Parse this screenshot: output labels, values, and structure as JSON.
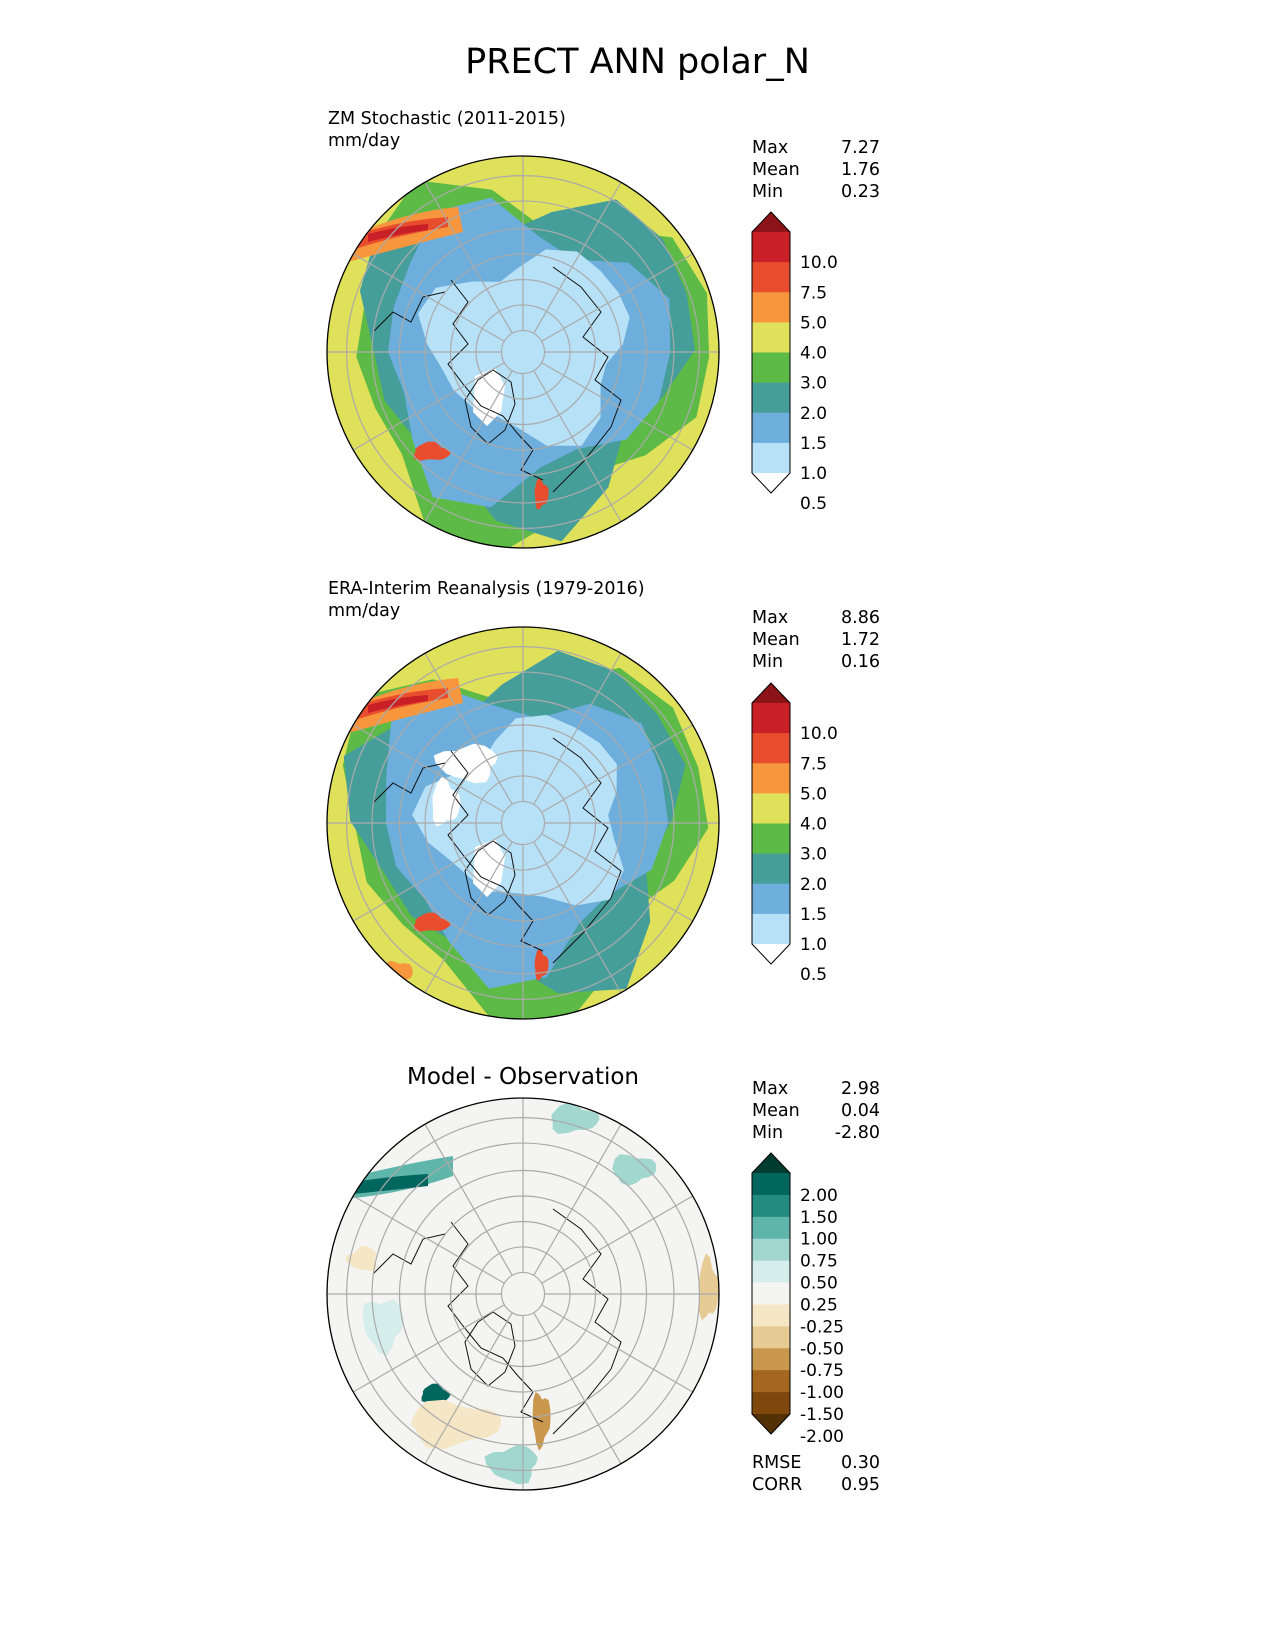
{
  "title": "PRECT ANN polar_N",
  "panels": [
    {
      "id": "test",
      "title_lines": [
        "ZM Stochastic (2011-2015)",
        "mm/day"
      ],
      "stats": [
        {
          "label": "Max",
          "value": "7.27"
        },
        {
          "label": "Mean",
          "value": "1.76"
        },
        {
          "label": "Min",
          "value": "0.23"
        }
      ]
    },
    {
      "id": "reference",
      "title_lines": [
        "ERA-Interim Reanalysis (1979-2016)",
        "mm/day"
      ],
      "stats": [
        {
          "label": "Max",
          "value": "8.86"
        },
        {
          "label": "Mean",
          "value": "1.72"
        },
        {
          "label": "Min",
          "value": "0.16"
        }
      ]
    },
    {
      "id": "diff",
      "title_lines": [
        "Model - Observation"
      ],
      "stats": [
        {
          "label": "Max",
          "value": "2.98"
        },
        {
          "label": "Mean",
          "value": "0.04"
        },
        {
          "label": "Min",
          "value": "-2.80"
        }
      ],
      "metrics": [
        {
          "label": "RMSE",
          "value": "0.30"
        },
        {
          "label": "CORR",
          "value": "0.95"
        }
      ]
    }
  ],
  "colorbars": {
    "absolute": {
      "levels": [
        "10.0",
        "7.5",
        "5.0",
        "4.0",
        "3.0",
        "2.0",
        "1.5",
        "1.0",
        "0.5"
      ],
      "colors": [
        "#8c1318",
        "#c91f26",
        "#e84e2e",
        "#f7963d",
        "#dfe15a",
        "#5eba47",
        "#469e9b",
        "#6daedd",
        "#b7e1f7",
        "#ffffff"
      ]
    },
    "difference": {
      "levels": [
        "2.00",
        "1.50",
        "1.00",
        "0.75",
        "0.50",
        "0.25",
        "-0.25",
        "-0.50",
        "-0.75",
        "-1.00",
        "-1.50",
        "-2.00"
      ],
      "colors": [
        "#003c30",
        "#01665e",
        "#238b80",
        "#5fb5a9",
        "#a1d7cf",
        "#d5eeeb",
        "#f4f4f2",
        "#f5e7c6",
        "#e6cb94",
        "#c9984e",
        "#a56620",
        "#7f470b",
        "#543005"
      ]
    }
  },
  "chart_data": [
    {
      "type": "heatmap",
      "projection": "north polar stereographic",
      "title": "ZM Stochastic (2011-2015)",
      "units": "mm/day",
      "summary": {
        "max": 7.27,
        "mean": 1.76,
        "min": 0.23
      },
      "contour_levels": [
        0.5,
        1.0,
        1.5,
        2.0,
        3.0,
        4.0,
        5.0,
        7.5,
        10.0
      ],
      "pattern": "driest (<0.5-1.0) over central Arctic, Greenland and the Canadian Archipelago; 1.0-2.0 over sub-Arctic land; 2.0-4.0 ring in mid-latitudes; maxima 5-10 in North Atlantic and North Pacific storm tracks"
    },
    {
      "type": "heatmap",
      "projection": "north polar stereographic",
      "title": "ERA-Interim Reanalysis (1979-2016)",
      "units": "mm/day",
      "summary": {
        "max": 8.86,
        "mean": 1.72,
        "min": 0.16
      },
      "contour_levels": [
        0.5,
        1.0,
        1.5,
        2.0,
        3.0,
        4.0,
        5.0,
        7.5,
        10.0
      ],
      "pattern": "similar to model; slightly drier (<0.5) over Greenland interior and parts of central Arctic; North Atlantic and Pacific maxima 5-10"
    },
    {
      "type": "heatmap",
      "projection": "north polar stereographic",
      "title": "Model - Observation",
      "summary": {
        "max": 2.98,
        "mean": 0.04,
        "min": -2.8,
        "rmse": 0.3,
        "corr": 0.95
      },
      "contour_levels": [
        -2.0,
        -1.5,
        -1.0,
        -0.75,
        -0.5,
        -0.25,
        0.25,
        0.5,
        0.75,
        1.0,
        1.5,
        2.0
      ],
      "pattern": "near zero over most of domain; positive bias >2 in North Pacific storm track and near southern Greenland; negative biases along eastern North American and Scandinavian coasts"
    }
  ]
}
